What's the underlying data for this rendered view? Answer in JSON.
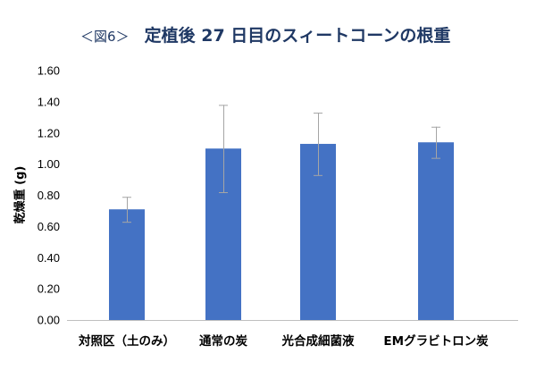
{
  "chart_data": {
    "type": "bar",
    "figure_label": "＜図6＞",
    "title": "定植後 27 日目のスィートコーンの根重",
    "xlabel": "",
    "ylabel": "乾燥重 (g)",
    "categories": [
      "対照区（土のみ）",
      "通常の炭",
      "光合成細菌液",
      "EMグラビトロン炭"
    ],
    "values": [
      0.71,
      1.1,
      1.13,
      1.14
    ],
    "errors": [
      0.08,
      0.28,
      0.2,
      0.1
    ],
    "ylim": [
      0,
      1.6
    ],
    "yticks": [
      "0.00",
      "0.20",
      "0.40",
      "0.60",
      "0.80",
      "1.00",
      "1.20",
      "1.40",
      "1.60"
    ],
    "grid": false,
    "colors": {
      "bar": "#4472C4",
      "error_bar": "#A5A5A5",
      "axis": "#BFBFBF",
      "title": "#1F3864"
    }
  }
}
